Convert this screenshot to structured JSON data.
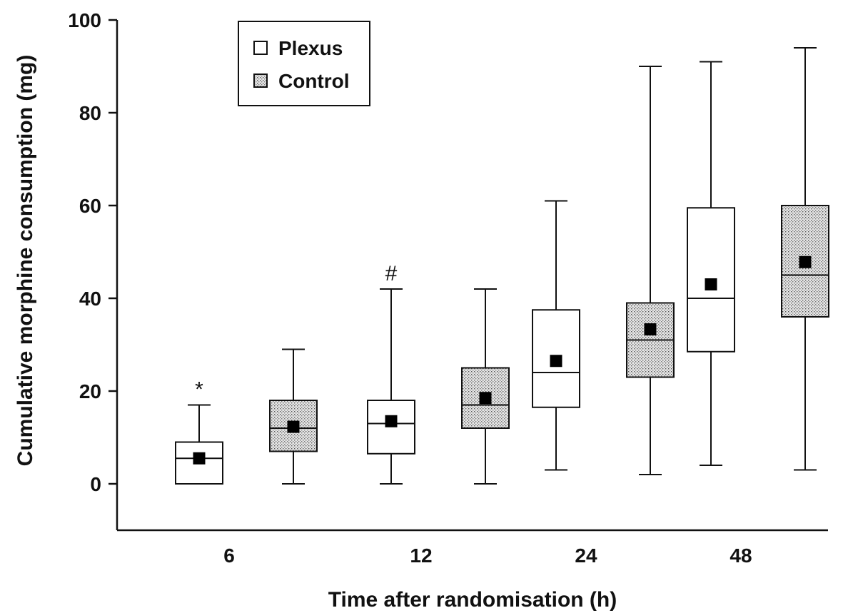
{
  "chart_data": {
    "type": "boxplot",
    "xlabel": "Time after randomisation (h)",
    "ylabel": "Cumulative morphine consumption (mg)",
    "ylim": [
      -10,
      100
    ],
    "yticks": [
      0,
      20,
      40,
      60,
      80,
      100
    ],
    "categories": [
      "6",
      "12",
      "24",
      "48"
    ],
    "legend": {
      "position": "top-left"
    },
    "series": [
      {
        "name": "Plexus",
        "fill": "#ffffff",
        "boxes": [
          {
            "min": 0,
            "q1": 0,
            "median": 5.5,
            "q3": 9,
            "max": 17,
            "mean": 5.5
          },
          {
            "min": 0,
            "q1": 6.5,
            "median": 13,
            "q3": 18,
            "max": 42,
            "mean": 13.5
          },
          {
            "min": 3,
            "q1": 16.5,
            "median": 24,
            "q3": 37.5,
            "max": 61,
            "mean": 26.5
          },
          {
            "min": 4,
            "q1": 28.5,
            "median": 40,
            "q3": 59.5,
            "max": 91,
            "mean": 43
          }
        ]
      },
      {
        "name": "Control",
        "fill": "#d9d9d9",
        "boxes": [
          {
            "min": 0,
            "q1": 7,
            "median": 12,
            "q3": 18,
            "max": 29,
            "mean": 12.3
          },
          {
            "min": 0,
            "q1": 12,
            "median": 17,
            "q3": 25,
            "max": 42,
            "mean": 18.5
          },
          {
            "min": 2,
            "q1": 23,
            "median": 31,
            "q3": 39,
            "max": 90,
            "mean": 33.3
          },
          {
            "min": 3,
            "q1": 36,
            "median": 45,
            "q3": 60,
            "max": 94,
            "mean": 47.8
          }
        ]
      }
    ],
    "annotations": [
      {
        "text": "*",
        "category": "6",
        "series": "Plexus"
      },
      {
        "text": "#",
        "category": "12",
        "series": "Plexus"
      }
    ]
  }
}
